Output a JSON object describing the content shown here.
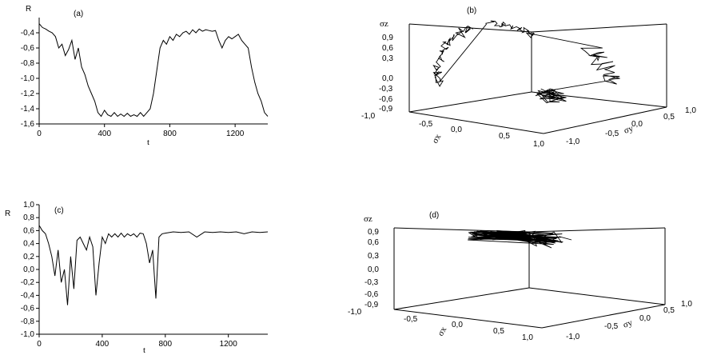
{
  "chart_data": [
    {
      "type": "line",
      "panel_label": "(a)",
      "xlabel": "t",
      "ylabel": "R",
      "xlim": [
        0,
        1400
      ],
      "ylim": [
        -1.6,
        -0.2
      ],
      "xticks": [
        0,
        400,
        800,
        1200
      ],
      "xtick_labels": [
        "0",
        "400",
        "800",
        "1200"
      ],
      "yticks": [
        -1.6,
        -1.4,
        -1.2,
        -1.0,
        -0.8,
        -0.6,
        -0.4
      ],
      "ytick_labels": [
        "-1,6",
        "-1,4",
        "-1,2",
        "-1,0",
        "-0,8",
        "-0,6",
        "-0,4"
      ],
      "series": [
        {
          "x": [
            0,
            20,
            40,
            60,
            80,
            100,
            120,
            140,
            160,
            180,
            200,
            220,
            240,
            260,
            280,
            300,
            320,
            340,
            360,
            380,
            400,
            420,
            440,
            460,
            480,
            500,
            520,
            540,
            560,
            580,
            600,
            620,
            640,
            660,
            680,
            700,
            720,
            740,
            760,
            780,
            800,
            820,
            840,
            860,
            880,
            900,
            920,
            940,
            960,
            980,
            1000,
            1020,
            1040,
            1060,
            1080,
            1100,
            1120,
            1140,
            1160,
            1180,
            1200,
            1220,
            1240,
            1260,
            1280,
            1300,
            1320,
            1340,
            1360,
            1380,
            1400
          ],
          "y": [
            -0.28,
            -0.33,
            -0.35,
            -0.38,
            -0.4,
            -0.45,
            -0.6,
            -0.55,
            -0.7,
            -0.62,
            -0.5,
            -0.75,
            -0.6,
            -0.85,
            -0.95,
            -1.1,
            -1.2,
            -1.3,
            -1.45,
            -1.5,
            -1.42,
            -1.48,
            -1.5,
            -1.45,
            -1.5,
            -1.47,
            -1.5,
            -1.46,
            -1.5,
            -1.48,
            -1.5,
            -1.45,
            -1.5,
            -1.45,
            -1.4,
            -1.2,
            -0.9,
            -0.6,
            -0.5,
            -0.55,
            -0.45,
            -0.5,
            -0.42,
            -0.45,
            -0.4,
            -0.38,
            -0.42,
            -0.36,
            -0.4,
            -0.35,
            -0.38,
            -0.36,
            -0.37,
            -0.38,
            -0.37,
            -0.5,
            -0.6,
            -0.5,
            -0.45,
            -0.48,
            -0.45,
            -0.42,
            -0.5,
            -0.55,
            -0.6,
            -0.85,
            -1.05,
            -1.2,
            -1.3,
            -1.45,
            -1.5
          ]
        }
      ]
    },
    {
      "type": "scatter3d",
      "panel_label": "(b)",
      "xlabel": "σx",
      "ylabel": "σy",
      "zlabel": "σz",
      "xticks": [
        "-1,0",
        "-0,5",
        "0,0",
        "0,5",
        "1,0"
      ],
      "yticks": [
        "-1,0",
        "-0,5",
        "0,0",
        "0,5",
        "1,0"
      ],
      "zticks": [
        "-0,9",
        "-0,6",
        "-0,3",
        "0,0",
        "0,3",
        "0,6",
        "0,9"
      ]
    },
    {
      "type": "line",
      "panel_label": "(c)",
      "xlabel": "t",
      "ylabel": "R",
      "xlim": [
        0,
        1450
      ],
      "ylim": [
        -1.0,
        1.0
      ],
      "xticks": [
        0,
        400,
        800,
        1200
      ],
      "xtick_labels": [
        "0",
        "400",
        "800",
        "1200"
      ],
      "yticks": [
        -1.0,
        -0.8,
        -0.6,
        -0.4,
        -0.2,
        0.0,
        0.2,
        0.4,
        0.6,
        0.8,
        1.0
      ],
      "ytick_labels": [
        "-1,0",
        "-0,8",
        "-0,6",
        "-0,4",
        "-0,2",
        "0,0",
        "0,2",
        "0,4",
        "0,6",
        "0,8",
        "1,0"
      ],
      "series": [
        {
          "x": [
            0,
            20,
            40,
            60,
            80,
            100,
            120,
            140,
            160,
            180,
            200,
            220,
            240,
            260,
            280,
            300,
            320,
            340,
            360,
            380,
            400,
            420,
            440,
            460,
            480,
            500,
            520,
            540,
            560,
            580,
            600,
            620,
            640,
            660,
            680,
            700,
            720,
            740,
            760,
            780,
            800,
            850,
            900,
            950,
            1000,
            1050,
            1100,
            1150,
            1200,
            1250,
            1300,
            1350,
            1400,
            1450
          ],
          "y": [
            0.68,
            0.6,
            0.55,
            0.4,
            0.2,
            -0.1,
            0.3,
            -0.2,
            0.0,
            -0.55,
            0.2,
            -0.3,
            0.45,
            0.5,
            0.4,
            0.3,
            0.5,
            0.35,
            -0.4,
            0.1,
            0.5,
            0.4,
            0.55,
            0.5,
            0.55,
            0.5,
            0.56,
            0.5,
            0.55,
            0.52,
            0.55,
            0.5,
            0.56,
            0.55,
            0.4,
            0.1,
            0.3,
            -0.45,
            0.5,
            0.55,
            0.56,
            0.58,
            0.57,
            0.58,
            0.5,
            0.58,
            0.57,
            0.58,
            0.57,
            0.58,
            0.55,
            0.58,
            0.57,
            0.58
          ]
        }
      ]
    },
    {
      "type": "scatter3d",
      "panel_label": "(d)",
      "xlabel": "σx",
      "ylabel": "σy",
      "zlabel": "σz",
      "xticks": [
        "-1,0",
        "-0,5",
        "0,0",
        "0,5",
        "1,0"
      ],
      "yticks": [
        "-1,0",
        "-0,5",
        "0,0",
        "0,5",
        "1,0"
      ],
      "zticks": [
        "-0,9",
        "-0,6",
        "-0,3",
        "0,0",
        "0,3",
        "0,6",
        "0,9"
      ]
    }
  ]
}
